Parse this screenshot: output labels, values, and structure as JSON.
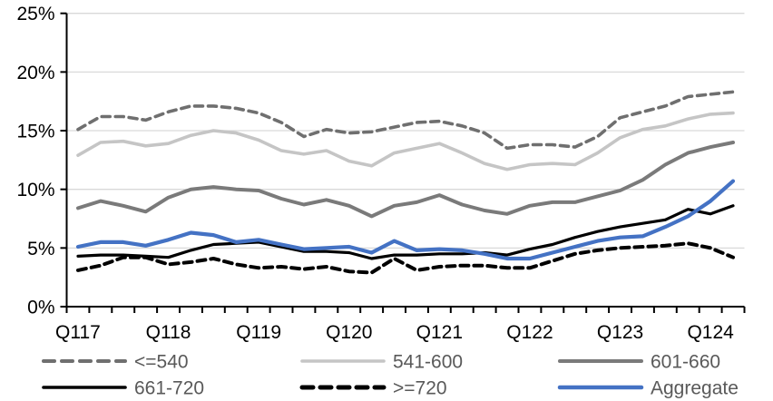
{
  "chart_data": {
    "type": "line",
    "title": "",
    "xlabel": "",
    "ylabel": "",
    "ylim": [
      0,
      25
    ],
    "y_tick_step": 5,
    "y_tick_labels": [
      "0%",
      "5%",
      "10%",
      "15%",
      "20%",
      "25%"
    ],
    "grid": "horizontal",
    "legend_position": "bottom",
    "categories": [
      "Q117",
      "Q217",
      "Q317",
      "Q417",
      "Q118",
      "Q218",
      "Q318",
      "Q418",
      "Q119",
      "Q219",
      "Q319",
      "Q419",
      "Q120",
      "Q220",
      "Q320",
      "Q420",
      "Q121",
      "Q221",
      "Q321",
      "Q421",
      "Q122",
      "Q222",
      "Q322",
      "Q422",
      "Q123",
      "Q223",
      "Q323",
      "Q423",
      "Q124",
      "Q224"
    ],
    "x_tick_labels_shown": [
      "Q117",
      "Q118",
      "Q119",
      "Q120",
      "Q121",
      "Q122",
      "Q123",
      "Q124"
    ],
    "x_label_every_n": 4,
    "series": [
      {
        "name": "<=540",
        "color": "#6F6F6F",
        "style": "dashed",
        "values": [
          15.1,
          16.2,
          16.2,
          15.9,
          16.6,
          17.1,
          17.1,
          16.9,
          16.5,
          15.7,
          14.5,
          15.1,
          14.8,
          14.9,
          15.3,
          15.7,
          15.8,
          15.4,
          14.8,
          13.5,
          13.8,
          13.8,
          13.6,
          14.5,
          16.1,
          16.6,
          17.1,
          17.9,
          18.1,
          18.3
        ]
      },
      {
        "name": "541-600",
        "color": "#C5C5C5",
        "style": "solid",
        "values": [
          12.9,
          14.0,
          14.1,
          13.7,
          13.9,
          14.6,
          15.0,
          14.8,
          14.2,
          13.3,
          13.0,
          13.3,
          12.4,
          12.0,
          13.1,
          13.5,
          13.9,
          13.1,
          12.2,
          11.7,
          12.1,
          12.2,
          12.1,
          13.1,
          14.4,
          15.1,
          15.4,
          16.0,
          16.4,
          16.5
        ]
      },
      {
        "name": "601-660",
        "color": "#7A7A7A",
        "style": "solid",
        "values": [
          8.4,
          9.0,
          8.6,
          8.1,
          9.3,
          10.0,
          10.2,
          10.0,
          9.9,
          9.2,
          8.7,
          9.1,
          8.6,
          7.7,
          8.6,
          8.9,
          9.5,
          8.7,
          8.2,
          7.9,
          8.6,
          8.9,
          8.9,
          9.4,
          9.9,
          10.8,
          12.1,
          13.1,
          13.6,
          14.0
        ]
      },
      {
        "name": "661-720",
        "color": "#000000",
        "style": "solid",
        "values": [
          4.3,
          4.4,
          4.4,
          4.3,
          4.2,
          4.8,
          5.3,
          5.4,
          5.5,
          5.1,
          4.7,
          4.7,
          4.6,
          4.1,
          4.4,
          4.4,
          4.5,
          4.5,
          4.6,
          4.4,
          4.9,
          5.3,
          5.9,
          6.4,
          6.8,
          7.1,
          7.4,
          8.3,
          7.9,
          8.6
        ]
      },
      {
        "name": ">=720",
        "color": "#000000",
        "style": "dashed",
        "values": [
          3.1,
          3.5,
          4.2,
          4.2,
          3.6,
          3.8,
          4.1,
          3.6,
          3.3,
          3.4,
          3.2,
          3.4,
          3.0,
          2.9,
          4.1,
          3.1,
          3.4,
          3.5,
          3.5,
          3.3,
          3.3,
          3.9,
          4.5,
          4.8,
          5.0,
          5.1,
          5.2,
          5.4,
          5.0,
          4.2
        ]
      },
      {
        "name": "Aggregate",
        "color": "#4472C4",
        "style": "solid",
        "values": [
          5.1,
          5.5,
          5.5,
          5.2,
          5.7,
          6.3,
          6.1,
          5.5,
          5.7,
          5.3,
          4.9,
          5.0,
          5.1,
          4.6,
          5.6,
          4.8,
          4.9,
          4.8,
          4.5,
          4.1,
          4.1,
          4.6,
          5.1,
          5.6,
          5.9,
          6.0,
          6.8,
          7.7,
          9.0,
          10.7
        ]
      }
    ],
    "legend_rows": [
      [
        "<=540",
        "541-600",
        "601-660"
      ],
      [
        "661-720",
        ">=720",
        "Aggregate"
      ]
    ]
  },
  "colors": {
    "background": "#FFFFFF",
    "gridline": "#D9D9D9",
    "axis": "#000000",
    "axis_label_text": "#000000",
    "legend_text": "#595959"
  }
}
